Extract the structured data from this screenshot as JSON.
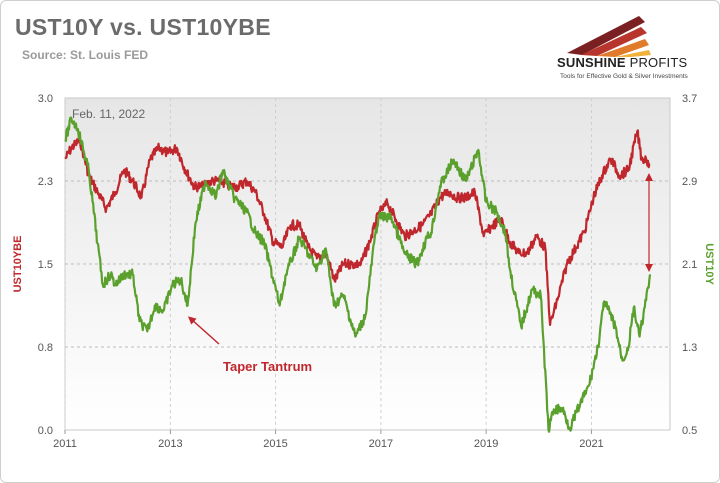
{
  "header": {
    "title": "UST10Y vs. UST10YBE",
    "source": "Source: St. Louis FED"
  },
  "logo": {
    "brand_primary": "SUNSHINE",
    "brand_secondary": "PROFITS",
    "tagline": "Tools for Effective Gold & Silver Investments"
  },
  "chart_data": {
    "type": "line",
    "date_label": "Feb. 11, 2022",
    "annotation": "Taper Tantrum",
    "grid": true,
    "x_ticks": [
      "2011",
      "2013",
      "2015",
      "2017",
      "2019",
      "2021"
    ],
    "xlim": [
      "2011-01-01",
      "2022-06-30"
    ],
    "y_left": {
      "label": "UST10YBE",
      "ticks": [
        "0.0",
        "0.8",
        "1.5",
        "2.3",
        "3.0"
      ],
      "lim": [
        0,
        3.0
      ],
      "color": "#c0272d"
    },
    "y_right": {
      "label": "UST10Y",
      "ticks": [
        "0.5",
        "1.3",
        "2.1",
        "2.9",
        "3.7"
      ],
      "lim": [
        0.5,
        3.7
      ],
      "color": "#5aa02c"
    },
    "series": [
      {
        "axis": "left",
        "color": "#c0272d",
        "points": [
          [
            "2011-01-03",
            2.45
          ],
          [
            "2011-02-15",
            2.55
          ],
          [
            "2011-04-15",
            2.62
          ],
          [
            "2011-06-15",
            2.3
          ],
          [
            "2011-08-15",
            2.15
          ],
          [
            "2011-10-15",
            2.0
          ],
          [
            "2011-12-15",
            2.15
          ],
          [
            "2012-02-15",
            2.35
          ],
          [
            "2012-04-15",
            2.25
          ],
          [
            "2012-06-15",
            2.1
          ],
          [
            "2012-08-15",
            2.45
          ],
          [
            "2012-10-15",
            2.55
          ],
          [
            "2012-12-15",
            2.5
          ],
          [
            "2013-02-15",
            2.55
          ],
          [
            "2013-04-15",
            2.35
          ],
          [
            "2013-06-15",
            2.2
          ],
          [
            "2013-08-15",
            2.2
          ],
          [
            "2013-10-15",
            2.25
          ],
          [
            "2013-12-15",
            2.25
          ],
          [
            "2014-02-15",
            2.2
          ],
          [
            "2014-04-15",
            2.2
          ],
          [
            "2014-06-15",
            2.25
          ],
          [
            "2014-08-15",
            2.15
          ],
          [
            "2014-10-15",
            1.95
          ],
          [
            "2014-12-15",
            1.7
          ],
          [
            "2015-02-15",
            1.65
          ],
          [
            "2015-04-15",
            1.85
          ],
          [
            "2015-06-15",
            1.85
          ],
          [
            "2015-08-15",
            1.65
          ],
          [
            "2015-10-15",
            1.55
          ],
          [
            "2015-12-15",
            1.6
          ],
          [
            "2016-02-15",
            1.35
          ],
          [
            "2016-04-15",
            1.5
          ],
          [
            "2016-06-15",
            1.5
          ],
          [
            "2016-08-15",
            1.5
          ],
          [
            "2016-10-15",
            1.7
          ],
          [
            "2016-12-15",
            1.95
          ],
          [
            "2017-02-15",
            2.05
          ],
          [
            "2017-04-15",
            1.9
          ],
          [
            "2017-06-15",
            1.75
          ],
          [
            "2017-08-15",
            1.8
          ],
          [
            "2017-10-15",
            1.85
          ],
          [
            "2017-12-15",
            1.95
          ],
          [
            "2018-02-15",
            2.1
          ],
          [
            "2018-04-15",
            2.15
          ],
          [
            "2018-06-15",
            2.1
          ],
          [
            "2018-08-15",
            2.1
          ],
          [
            "2018-10-15",
            2.15
          ],
          [
            "2018-12-15",
            1.75
          ],
          [
            "2019-02-15",
            1.85
          ],
          [
            "2019-04-15",
            1.9
          ],
          [
            "2019-06-15",
            1.7
          ],
          [
            "2019-08-15",
            1.6
          ],
          [
            "2019-10-15",
            1.6
          ],
          [
            "2019-12-15",
            1.75
          ],
          [
            "2020-02-15",
            1.65
          ],
          [
            "2020-03-20",
            0.95
          ],
          [
            "2020-05-15",
            1.2
          ],
          [
            "2020-07-15",
            1.5
          ],
          [
            "2020-09-15",
            1.65
          ],
          [
            "2020-11-15",
            1.8
          ],
          [
            "2021-01-15",
            2.1
          ],
          [
            "2021-03-15",
            2.3
          ],
          [
            "2021-05-15",
            2.45
          ],
          [
            "2021-07-15",
            2.3
          ],
          [
            "2021-09-15",
            2.35
          ],
          [
            "2021-11-15",
            2.7
          ],
          [
            "2021-12-15",
            2.45
          ],
          [
            "2022-01-15",
            2.45
          ],
          [
            "2022-02-11",
            2.4
          ]
        ]
      },
      {
        "axis": "right",
        "color": "#5aa02c",
        "points": [
          [
            "2011-01-03",
            3.3
          ],
          [
            "2011-02-15",
            3.5
          ],
          [
            "2011-04-01",
            3.4
          ],
          [
            "2011-06-15",
            3.0
          ],
          [
            "2011-08-15",
            2.3
          ],
          [
            "2011-09-20",
            1.9
          ],
          [
            "2011-11-15",
            2.0
          ],
          [
            "2011-12-15",
            1.9
          ],
          [
            "2012-02-15",
            2.0
          ],
          [
            "2012-04-15",
            2.0
          ],
          [
            "2012-06-01",
            1.55
          ],
          [
            "2012-07-25",
            1.45
          ],
          [
            "2012-09-15",
            1.7
          ],
          [
            "2012-11-15",
            1.65
          ],
          [
            "2013-01-15",
            1.9
          ],
          [
            "2013-03-15",
            1.95
          ],
          [
            "2013-05-01",
            1.7
          ],
          [
            "2013-06-25",
            2.5
          ],
          [
            "2013-09-01",
            2.9
          ],
          [
            "2013-11-15",
            2.75
          ],
          [
            "2013-12-31",
            3.0
          ],
          [
            "2014-03-15",
            2.75
          ],
          [
            "2014-06-15",
            2.6
          ],
          [
            "2014-08-15",
            2.4
          ],
          [
            "2014-10-15",
            2.3
          ],
          [
            "2015-01-30",
            1.7
          ],
          [
            "2015-03-15",
            2.0
          ],
          [
            "2015-06-15",
            2.35
          ],
          [
            "2015-08-15",
            2.2
          ],
          [
            "2015-10-15",
            2.05
          ],
          [
            "2015-12-15",
            2.25
          ],
          [
            "2016-02-10",
            1.7
          ],
          [
            "2016-04-15",
            1.8
          ],
          [
            "2016-07-08",
            1.4
          ],
          [
            "2016-09-15",
            1.6
          ],
          [
            "2016-11-15",
            2.3
          ],
          [
            "2016-12-15",
            2.55
          ],
          [
            "2017-03-15",
            2.55
          ],
          [
            "2017-06-15",
            2.2
          ],
          [
            "2017-09-08",
            2.1
          ],
          [
            "2017-11-15",
            2.35
          ],
          [
            "2017-12-15",
            2.4
          ],
          [
            "2018-02-15",
            2.85
          ],
          [
            "2018-05-17",
            3.1
          ],
          [
            "2018-08-15",
            2.9
          ],
          [
            "2018-11-08",
            3.2
          ],
          [
            "2018-12-31",
            2.7
          ],
          [
            "2019-03-15",
            2.6
          ],
          [
            "2019-05-15",
            2.4
          ],
          [
            "2019-06-15",
            2.05
          ],
          [
            "2019-09-01",
            1.5
          ],
          [
            "2019-11-15",
            1.85
          ],
          [
            "2020-01-15",
            1.8
          ],
          [
            "2020-03-09",
            0.5
          ],
          [
            "2020-04-15",
            0.7
          ],
          [
            "2020-06-15",
            0.7
          ],
          [
            "2020-08-04",
            0.52
          ],
          [
            "2020-10-15",
            0.75
          ],
          [
            "2020-12-15",
            0.93
          ],
          [
            "2021-02-15",
            1.3
          ],
          [
            "2021-03-31",
            1.74
          ],
          [
            "2021-06-15",
            1.5
          ],
          [
            "2021-08-04",
            1.17
          ],
          [
            "2021-09-15",
            1.3
          ],
          [
            "2021-10-21",
            1.68
          ],
          [
            "2021-12-01",
            1.4
          ],
          [
            "2022-01-15",
            1.75
          ],
          [
            "2022-02-11",
            2.0
          ]
        ]
      }
    ]
  }
}
